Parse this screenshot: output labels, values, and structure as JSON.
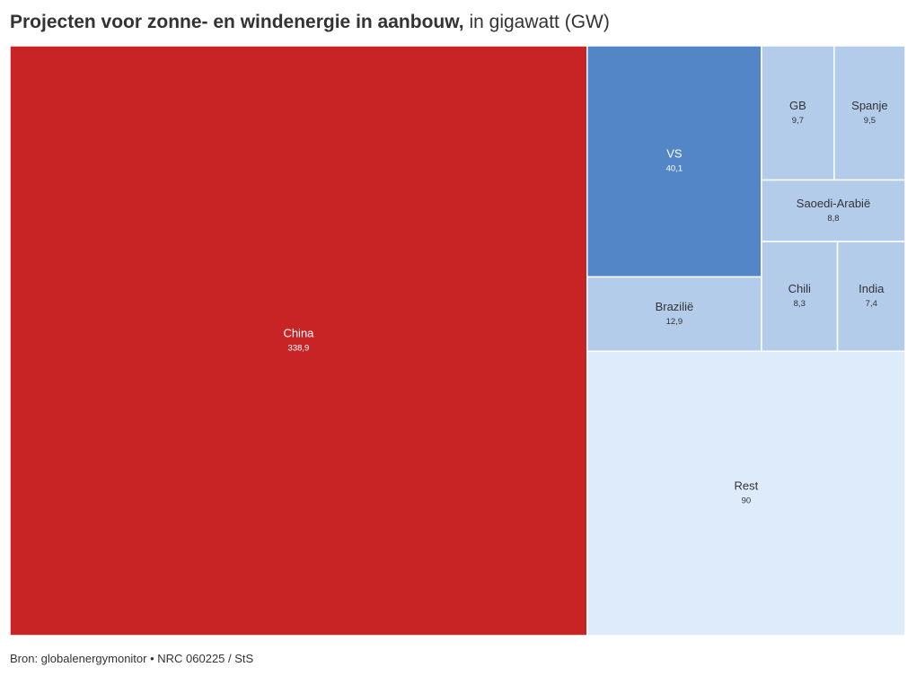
{
  "title": {
    "bold": "Projecten voor zonne- en windenergie in aanbouw,",
    "light": "in gigawatt (GW)"
  },
  "footer": {
    "source": "Bron: globalenergymonitor • NRC 060225 / StS"
  },
  "chart_data": {
    "type": "treemap",
    "title": "Projecten voor zonne- en windenergie in aanbouw, in gigawatt (GW)",
    "unit": "GW",
    "items": [
      {
        "id": "china",
        "label": "China",
        "value": 338.9,
        "value_label": "338,9",
        "color": "#c82426",
        "text_color": "#ffffff"
      },
      {
        "id": "vs",
        "label": "VS",
        "value": 40.1,
        "value_label": "40,1",
        "color": "#5386c7",
        "text_color": "#ffffff"
      },
      {
        "id": "brazilie",
        "label": "Brazilië",
        "value": 12.9,
        "value_label": "12,9",
        "color": "#b3ccea",
        "text_color": "#333333"
      },
      {
        "id": "gb",
        "label": "GB",
        "value": 9.7,
        "value_label": "9,7",
        "color": "#b3ccea",
        "text_color": "#333333"
      },
      {
        "id": "spanje",
        "label": "Spanje",
        "value": 9.5,
        "value_label": "9,5",
        "color": "#b3ccea",
        "text_color": "#333333"
      },
      {
        "id": "saoedi-arabie",
        "label": "Saoedi-Arabië",
        "value": 8.8,
        "value_label": "8,8",
        "color": "#b3ccea",
        "text_color": "#333333"
      },
      {
        "id": "chili",
        "label": "Chili",
        "value": 8.3,
        "value_label": "8,3",
        "color": "#b3ccea",
        "text_color": "#333333"
      },
      {
        "id": "india",
        "label": "India",
        "value": 7.4,
        "value_label": "7,4",
        "color": "#b3ccea",
        "text_color": "#333333"
      },
      {
        "id": "rest",
        "label": "Rest",
        "value": 90,
        "value_label": "90",
        "color": "#deebfa",
        "text_color": "#333333"
      }
    ]
  }
}
